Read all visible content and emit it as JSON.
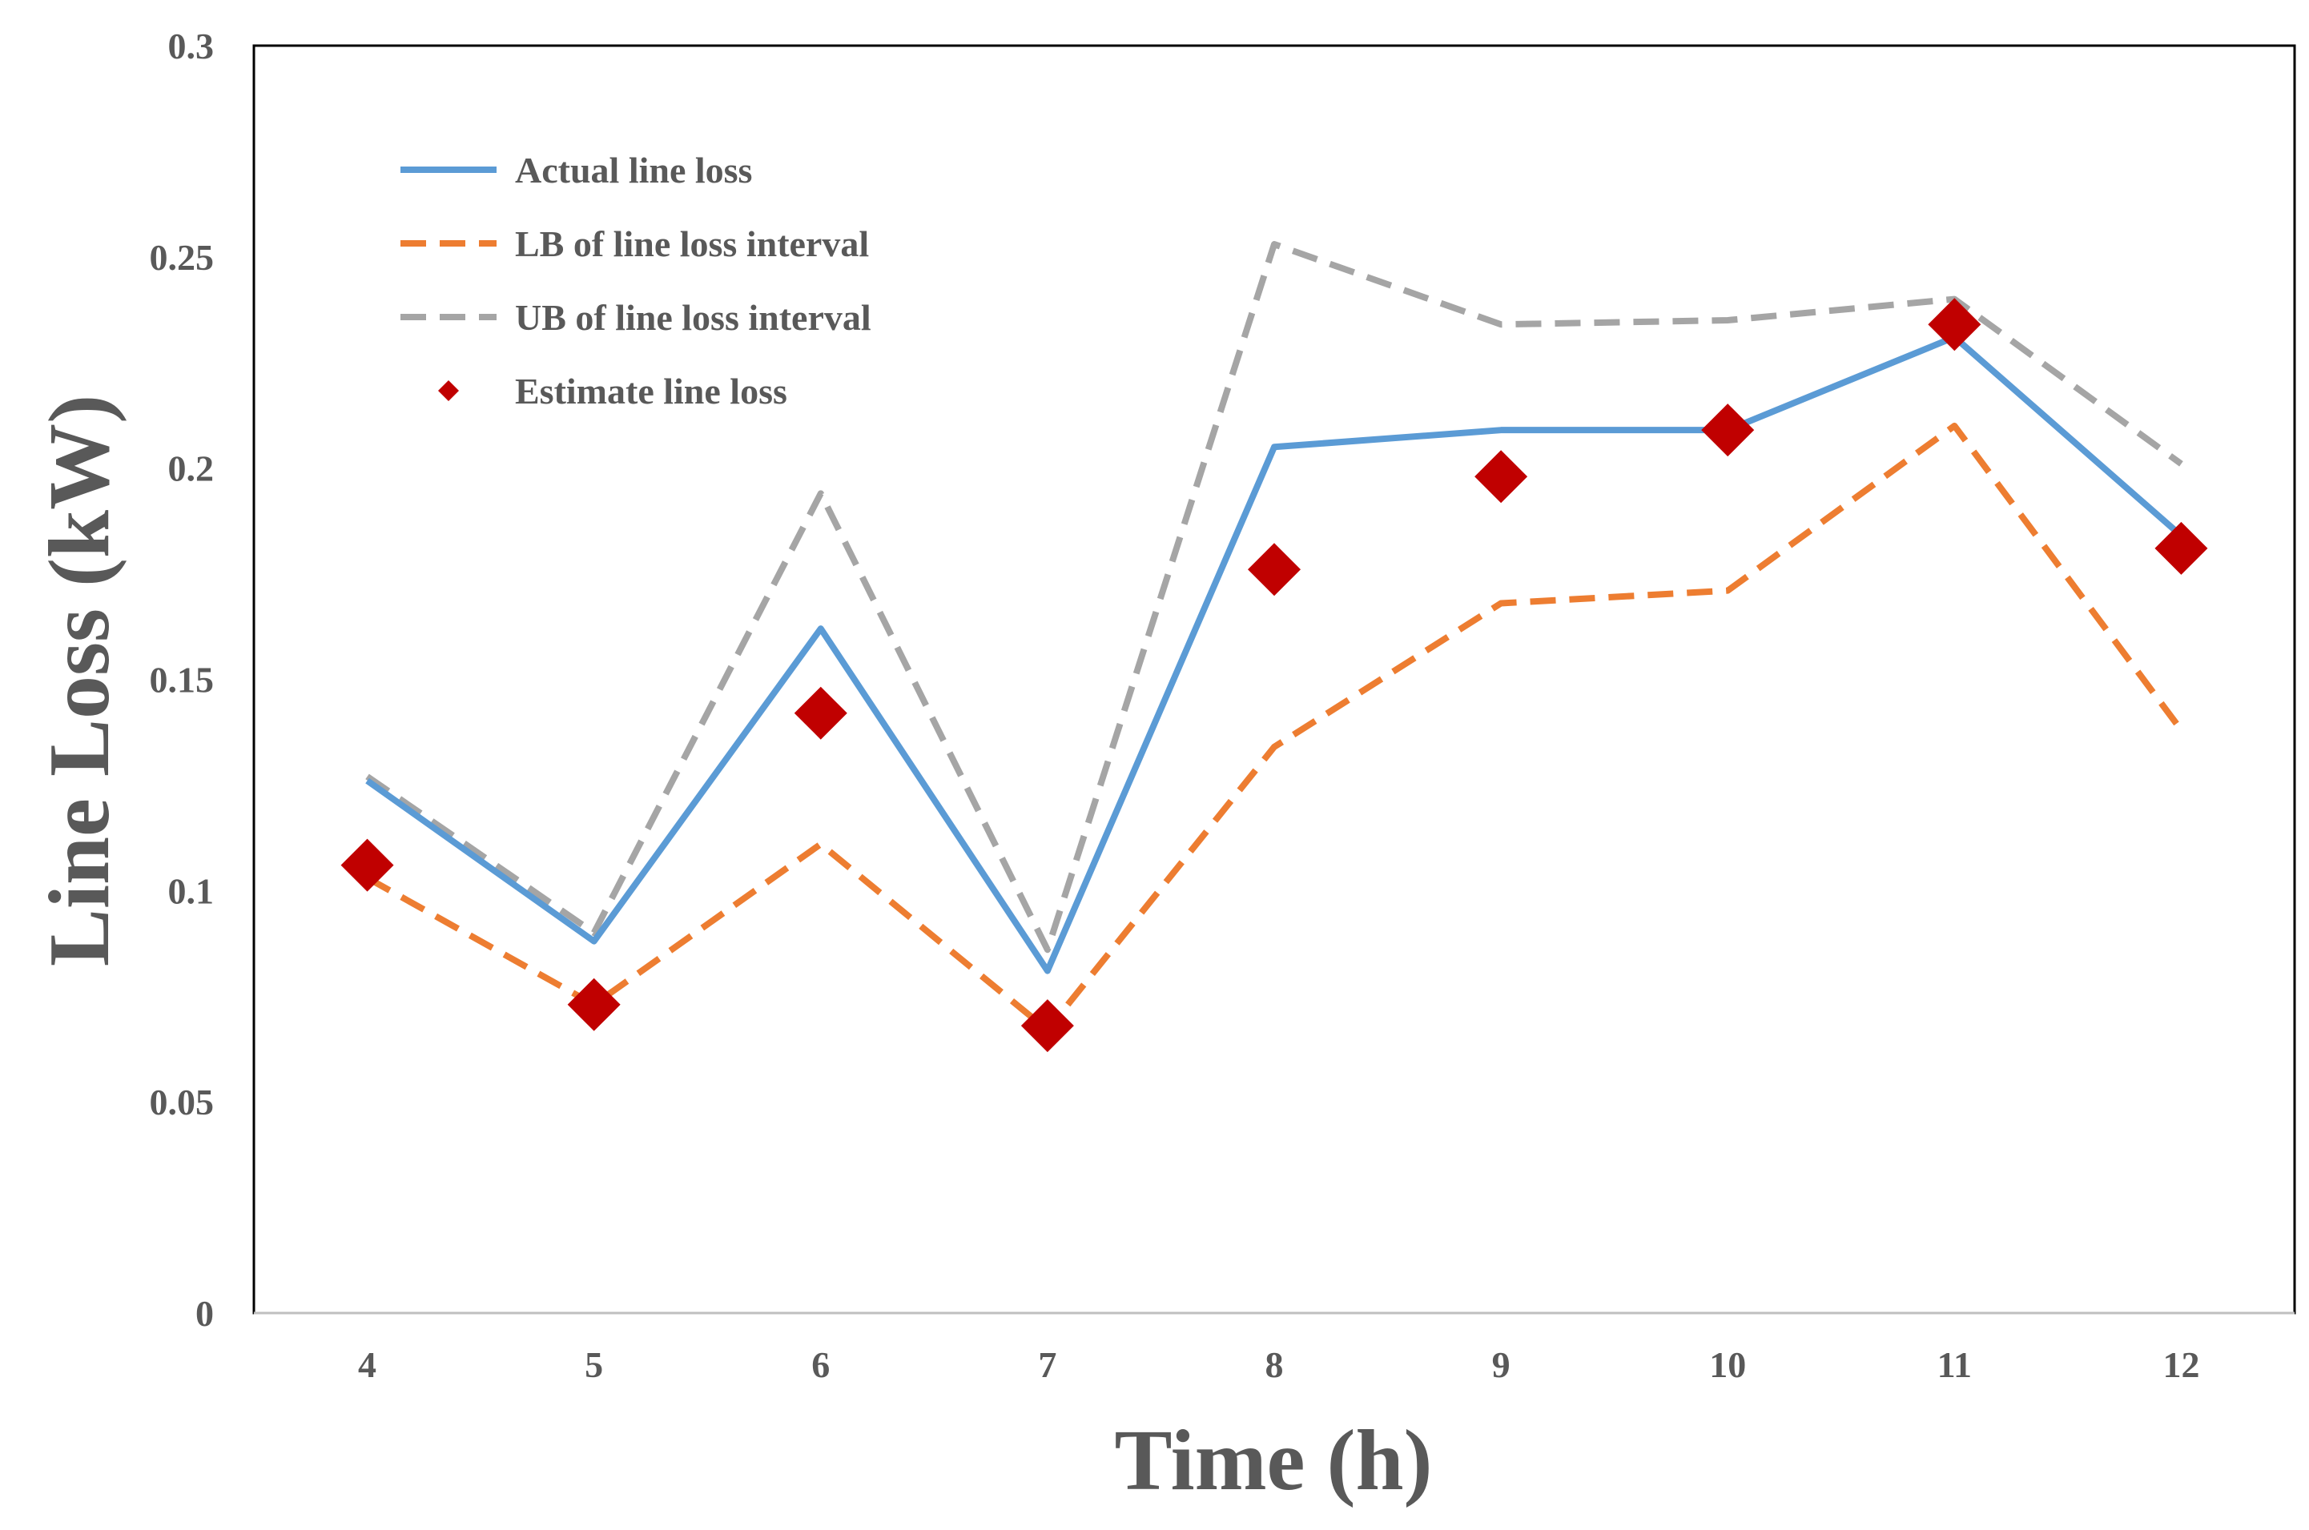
{
  "chart_data": {
    "type": "line",
    "title": "",
    "xlabel": "Time (h)",
    "ylabel": "Line Loss (kW)",
    "categories": [
      "4",
      "5",
      "6",
      "7",
      "8",
      "9",
      "10",
      "11",
      "12"
    ],
    "ylim": [
      0,
      0.3
    ],
    "yticks": [
      0,
      0.05,
      0.1,
      0.15,
      0.2,
      0.25,
      0.3
    ],
    "ytick_labels": [
      "0",
      "0.05",
      "0.1",
      "0.15",
      "0.2",
      "0.25",
      "0.3"
    ],
    "grid": false,
    "legend_position": "top-left",
    "series": [
      {
        "name": "Actual line loss",
        "kind": "line",
        "dash": "solid",
        "color": "#5B9BD5",
        "values": [
          0.126,
          0.088,
          0.162,
          0.081,
          0.205,
          0.209,
          0.209,
          0.231,
          0.184
        ]
      },
      {
        "name": "LB of line loss interval",
        "kind": "line",
        "dash": "dashed",
        "color": "#ED7D31",
        "values": [
          0.103,
          0.073,
          0.111,
          0.067,
          0.134,
          0.168,
          0.171,
          0.21,
          0.138
        ]
      },
      {
        "name": "UB of line loss interval",
        "kind": "line",
        "dash": "dashed",
        "color": "#A5A5A5",
        "values": [
          0.127,
          0.09,
          0.194,
          0.086,
          0.253,
          0.234,
          0.235,
          0.24,
          0.201
        ]
      },
      {
        "name": "Estimate line loss",
        "kind": "marker",
        "marker": "diamond",
        "color": "#C00000",
        "values": [
          0.106,
          0.073,
          0.142,
          0.068,
          0.176,
          0.198,
          0.209,
          0.234,
          0.181
        ]
      }
    ]
  }
}
